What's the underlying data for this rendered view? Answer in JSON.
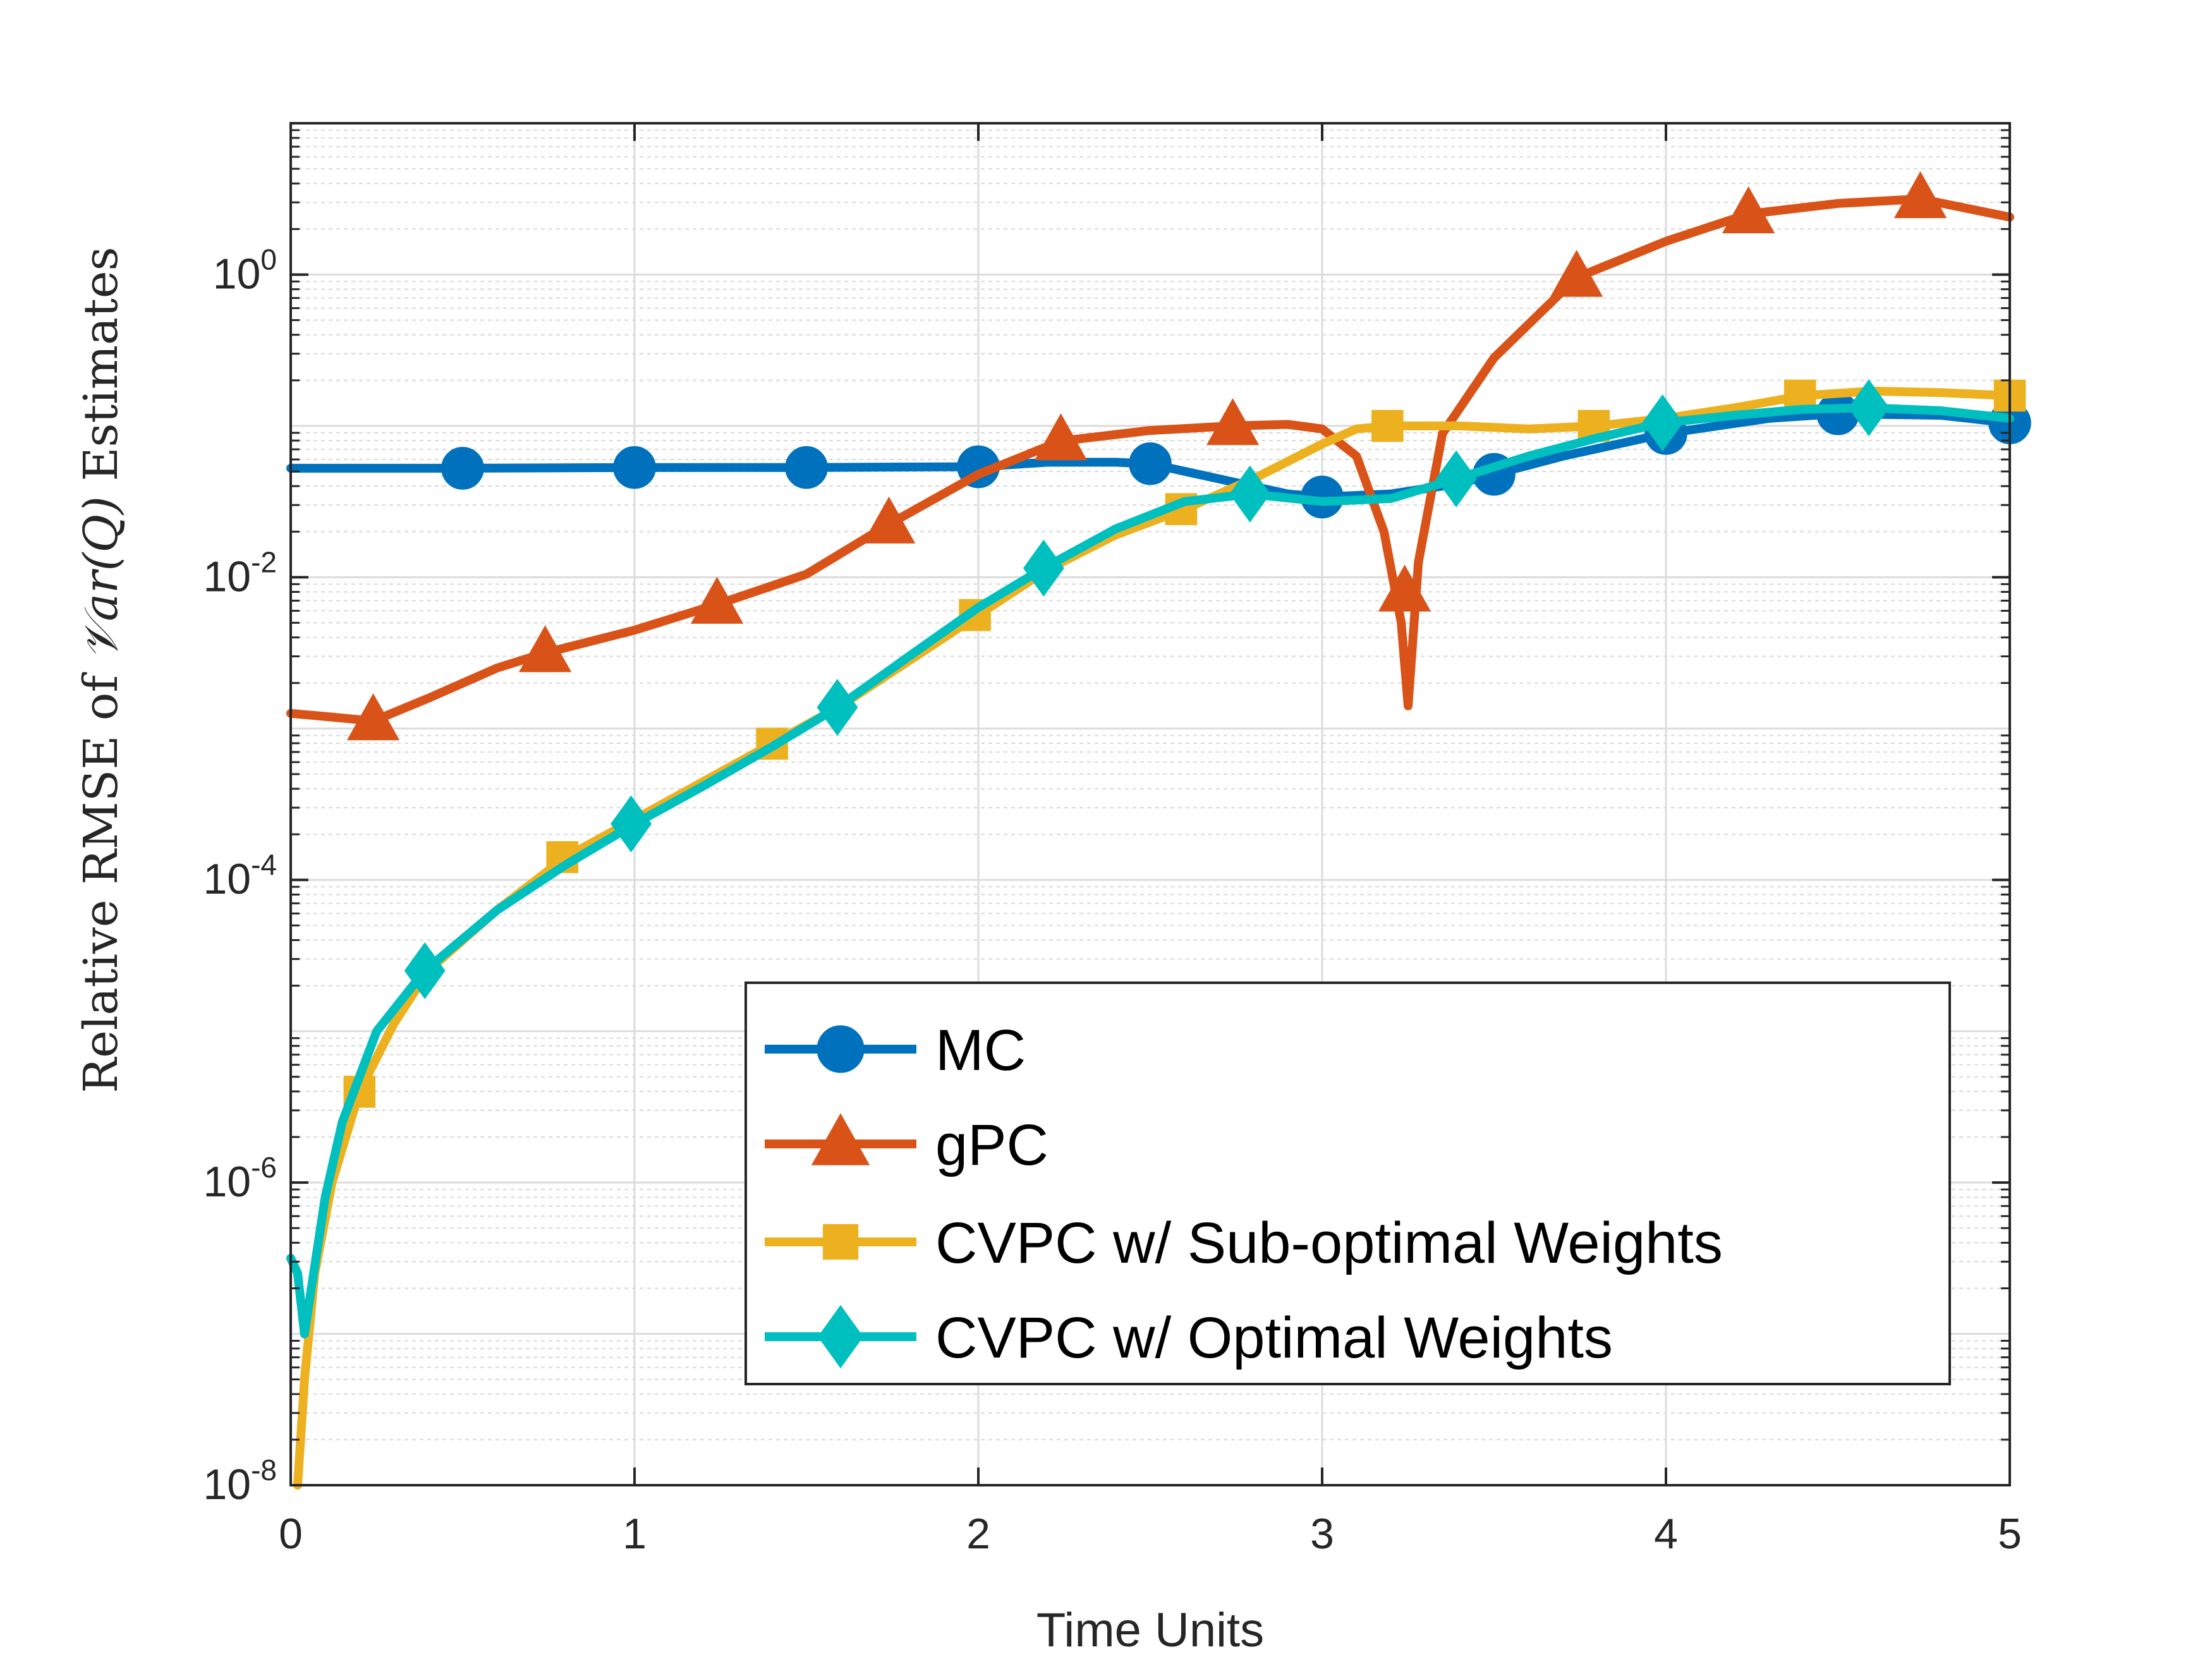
{
  "chart_data": {
    "type": "line",
    "yscale": "log",
    "xlabel": "Time Units",
    "ylabel": {
      "prefix": "Relative RMSE of ",
      "symbol": "𝒱",
      "var": "ar(Q)",
      "suffix": " Estimates"
    },
    "xlim": [
      0,
      5
    ],
    "ylim_log10": [
      -8,
      1
    ],
    "x_ticks": [
      0,
      1,
      2,
      3,
      4,
      5
    ],
    "x_tick_labels": [
      "0",
      "1",
      "2",
      "3",
      "4",
      "5"
    ],
    "y_ticks_log10": [
      -8,
      -6,
      -4,
      -2,
      0
    ],
    "y_tick_labels": [
      {
        "base": "10",
        "exp": "-8"
      },
      {
        "base": "10",
        "exp": "-6"
      },
      {
        "base": "10",
        "exp": "-4"
      },
      {
        "base": "10",
        "exp": "-2"
      },
      {
        "base": "10",
        "exp": "0"
      }
    ],
    "grid": true,
    "legend_position": "bottom-right",
    "series": [
      {
        "name": "MC",
        "color": "#0072BD",
        "marker": "circle",
        "curve_log10": [
          [
            0,
            -1.28
          ],
          [
            0.5,
            -1.28
          ],
          [
            1,
            -1.275
          ],
          [
            1.5,
            -1.275
          ],
          [
            2,
            -1.27
          ],
          [
            2.2,
            -1.24
          ],
          [
            2.4,
            -1.24
          ],
          [
            2.5,
            -1.25
          ],
          [
            2.7,
            -1.35
          ],
          [
            2.9,
            -1.45
          ],
          [
            3.0,
            -1.47
          ],
          [
            3.2,
            -1.45
          ],
          [
            3.4,
            -1.38
          ],
          [
            3.5,
            -1.32
          ],
          [
            3.7,
            -1.2
          ],
          [
            4.0,
            -1.05
          ],
          [
            4.3,
            -0.95
          ],
          [
            4.5,
            -0.92
          ],
          [
            4.8,
            -0.93
          ],
          [
            5.0,
            -0.98
          ]
        ],
        "markers_log10": [
          [
            0.5,
            -1.28
          ],
          [
            1.0,
            -1.275
          ],
          [
            1.5,
            -1.275
          ],
          [
            2.0,
            -1.27
          ],
          [
            2.5,
            -1.25
          ],
          [
            3.0,
            -1.47
          ],
          [
            3.5,
            -1.32
          ],
          [
            4.0,
            -1.05
          ],
          [
            4.5,
            -0.92
          ],
          [
            5.0,
            -0.98
          ]
        ]
      },
      {
        "name": "gPC",
        "color": "#D95319",
        "marker": "triangle",
        "curve_log10": [
          [
            0,
            -2.9
          ],
          [
            0.1,
            -2.92
          ],
          [
            0.24,
            -2.95
          ],
          [
            0.4,
            -2.8
          ],
          [
            0.6,
            -2.6
          ],
          [
            0.74,
            -2.5
          ],
          [
            1.0,
            -2.35
          ],
          [
            1.24,
            -2.18
          ],
          [
            1.5,
            -1.98
          ],
          [
            1.74,
            -1.65
          ],
          [
            2.0,
            -1.32
          ],
          [
            2.24,
            -1.1
          ],
          [
            2.5,
            -1.03
          ],
          [
            2.74,
            -1.0
          ],
          [
            2.9,
            -0.99
          ],
          [
            3.0,
            -1.02
          ],
          [
            3.1,
            -1.2
          ],
          [
            3.18,
            -1.7
          ],
          [
            3.23,
            -2.3
          ],
          [
            3.25,
            -2.85
          ],
          [
            3.28,
            -1.9
          ],
          [
            3.35,
            -1.05
          ],
          [
            3.5,
            -0.55
          ],
          [
            3.74,
            -0.02
          ],
          [
            4.0,
            0.22
          ],
          [
            4.24,
            0.4
          ],
          [
            4.5,
            0.47
          ],
          [
            4.74,
            0.5
          ],
          [
            5.0,
            0.38
          ]
        ],
        "markers_log10": [
          [
            0.24,
            -2.95
          ],
          [
            0.74,
            -2.5
          ],
          [
            1.24,
            -2.18
          ],
          [
            1.74,
            -1.65
          ],
          [
            2.24,
            -1.1
          ],
          [
            2.74,
            -1.0
          ],
          [
            3.24,
            -2.1
          ],
          [
            3.74,
            -0.02
          ],
          [
            4.24,
            0.4
          ],
          [
            4.74,
            0.5
          ]
        ]
      },
      {
        "name": "CVPC w/ Sub-optimal Weights",
        "color": "#EDB120",
        "marker": "square",
        "curve_log10": [
          [
            0.02,
            -8
          ],
          [
            0.04,
            -7.3
          ],
          [
            0.07,
            -6.6
          ],
          [
            0.12,
            -6.0
          ],
          [
            0.2,
            -5.4
          ],
          [
            0.3,
            -4.95
          ],
          [
            0.4,
            -4.6
          ],
          [
            0.6,
            -4.2
          ],
          [
            0.8,
            -3.85
          ],
          [
            1.0,
            -3.6
          ],
          [
            1.2,
            -3.35
          ],
          [
            1.4,
            -3.1
          ],
          [
            1.6,
            -2.85
          ],
          [
            1.8,
            -2.55
          ],
          [
            2.0,
            -2.25
          ],
          [
            2.2,
            -1.95
          ],
          [
            2.4,
            -1.72
          ],
          [
            2.6,
            -1.55
          ],
          [
            2.8,
            -1.35
          ],
          [
            3.0,
            -1.12
          ],
          [
            3.1,
            -1.02
          ],
          [
            3.2,
            -1.0
          ],
          [
            3.4,
            -1.0
          ],
          [
            3.6,
            -1.02
          ],
          [
            3.8,
            -1.0
          ],
          [
            4.0,
            -0.95
          ],
          [
            4.2,
            -0.88
          ],
          [
            4.4,
            -0.8
          ],
          [
            4.6,
            -0.77
          ],
          [
            4.8,
            -0.78
          ],
          [
            5.0,
            -0.8
          ]
        ],
        "markers_log10": [
          [
            0.2,
            -5.4
          ],
          [
            0.79,
            -3.85
          ],
          [
            1.4,
            -3.1
          ],
          [
            1.99,
            -2.25
          ],
          [
            2.59,
            -1.55
          ],
          [
            3.19,
            -1.0
          ],
          [
            3.79,
            -1.0
          ],
          [
            4.39,
            -0.8
          ],
          [
            5.0,
            -0.8
          ]
        ]
      },
      {
        "name": "CVPC w/ Optimal Weights",
        "color": "#00BFBF",
        "marker": "diamond",
        "curve_log10": [
          [
            0.0,
            -6.5
          ],
          [
            0.02,
            -6.6
          ],
          [
            0.04,
            -7.0
          ],
          [
            0.06,
            -6.7
          ],
          [
            0.1,
            -6.1
          ],
          [
            0.15,
            -5.6
          ],
          [
            0.25,
            -5.0
          ],
          [
            0.39,
            -4.6
          ],
          [
            0.6,
            -4.2
          ],
          [
            0.8,
            -3.9
          ],
          [
            1.0,
            -3.63
          ],
          [
            1.2,
            -3.38
          ],
          [
            1.4,
            -3.12
          ],
          [
            1.59,
            -2.86
          ],
          [
            1.8,
            -2.52
          ],
          [
            2.0,
            -2.2
          ],
          [
            2.19,
            -1.94
          ],
          [
            2.4,
            -1.68
          ],
          [
            2.6,
            -1.5
          ],
          [
            2.79,
            -1.45
          ],
          [
            3.0,
            -1.5
          ],
          [
            3.2,
            -1.48
          ],
          [
            3.39,
            -1.35
          ],
          [
            3.6,
            -1.2
          ],
          [
            3.8,
            -1.08
          ],
          [
            3.99,
            -0.98
          ],
          [
            4.2,
            -0.93
          ],
          [
            4.4,
            -0.89
          ],
          [
            4.59,
            -0.88
          ],
          [
            4.8,
            -0.9
          ],
          [
            5.0,
            -0.95
          ]
        ],
        "markers_log10": [
          [
            0.39,
            -4.6
          ],
          [
            0.99,
            -3.63
          ],
          [
            1.59,
            -2.86
          ],
          [
            2.19,
            -1.94
          ],
          [
            2.79,
            -1.45
          ],
          [
            3.39,
            -1.35
          ],
          [
            3.99,
            -0.98
          ],
          [
            4.59,
            -0.88
          ]
        ]
      }
    ]
  }
}
